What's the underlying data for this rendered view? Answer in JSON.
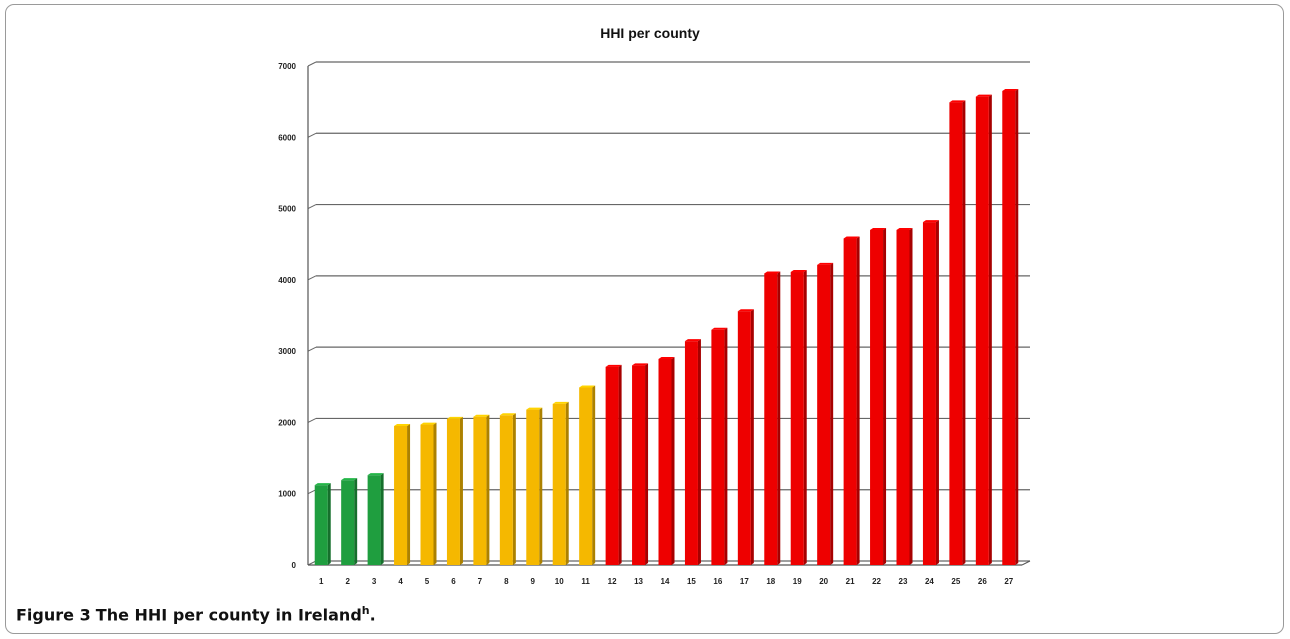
{
  "figure": {
    "caption_label": "Figure 3",
    "caption_text": "The HHI per county in Ireland",
    "caption_sup": "h",
    "caption_end": "."
  },
  "chart_data": {
    "type": "bar",
    "title": "HHI per county",
    "xlabel": "",
    "ylabel": "",
    "categories": [
      "1",
      "2",
      "3",
      "4",
      "5",
      "6",
      "7",
      "8",
      "9",
      "10",
      "11",
      "12",
      "13",
      "14",
      "15",
      "16",
      "17",
      "18",
      "19",
      "20",
      "21",
      "22",
      "23",
      "24",
      "25",
      "26",
      "27"
    ],
    "values": [
      1120,
      1190,
      1260,
      1950,
      1970,
      2050,
      2080,
      2100,
      2180,
      2260,
      2490,
      2780,
      2800,
      2890,
      3140,
      3300,
      3560,
      4090,
      4110,
      4210,
      4580,
      4700,
      4700,
      4810,
      6490,
      6570,
      6650
    ],
    "bar_colors": [
      "#1f9e3f",
      "#1f9e3f",
      "#1f9e3f",
      "#f5b800",
      "#f5b800",
      "#f5b800",
      "#f5b800",
      "#f5b800",
      "#f5b800",
      "#f5b800",
      "#f5b800",
      "#ee0000",
      "#ee0000",
      "#ee0000",
      "#ee0000",
      "#ee0000",
      "#ee0000",
      "#ee0000",
      "#ee0000",
      "#ee0000",
      "#ee0000",
      "#ee0000",
      "#ee0000",
      "#ee0000",
      "#ee0000",
      "#ee0000",
      "#ee0000"
    ],
    "ylim": [
      0,
      7000
    ],
    "yticks": [
      0,
      1000,
      2000,
      3000,
      4000,
      5000,
      6000,
      7000
    ],
    "grid": true,
    "legend": "none"
  }
}
